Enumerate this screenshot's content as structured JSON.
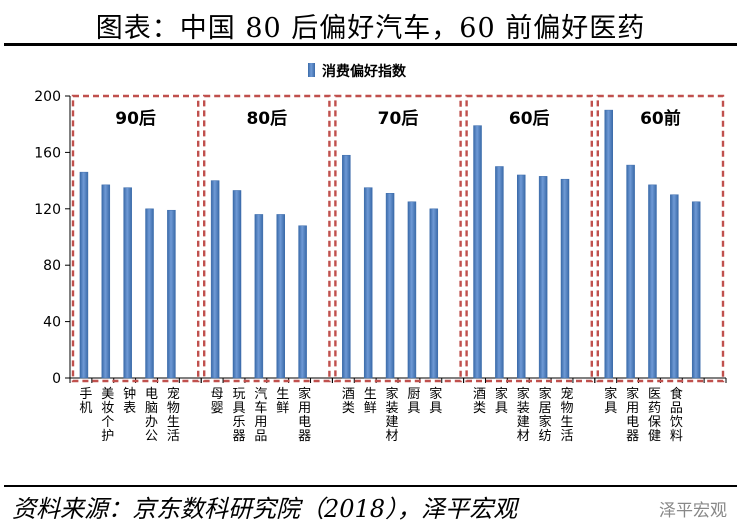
{
  "title": "图表：中国 80 后偏好汽车，60 前偏好医药",
  "source": "资料来源：京东数科研究院（2018），泽平宏观",
  "watermark": "泽平宏观",
  "colors": {
    "bar": "#4f81bd",
    "box": "#c0504d"
  },
  "chart_data": {
    "type": "bar",
    "ylim": [
      0,
      200
    ],
    "yticks": [
      0,
      40,
      80,
      120,
      160,
      200
    ],
    "legend": "消费偏好指数",
    "legend_position": "top-center",
    "groups": [
      {
        "label": "90后",
        "categories": [
          "手机",
          "美妆个护",
          "钟表",
          "电脑办公",
          "宠物生活"
        ],
        "values": [
          146,
          137,
          135,
          120,
          119
        ]
      },
      {
        "label": "80后",
        "categories": [
          "母婴",
          "玩具乐器",
          "汽车用品",
          "生鲜",
          "家用电器"
        ],
        "values": [
          140,
          133,
          116,
          116,
          108
        ]
      },
      {
        "label": "70后",
        "categories": [
          "酒类",
          "生鲜",
          "家装建材",
          "厨具",
          "家具"
        ],
        "values": [
          158,
          135,
          131,
          125,
          120
        ]
      },
      {
        "label": "60后",
        "categories": [
          "酒类",
          "家具",
          "家装建材",
          "家居家纺",
          "宠物生活"
        ],
        "values": [
          179,
          150,
          144,
          143,
          141
        ]
      },
      {
        "label": "60前",
        "categories": [
          "家具",
          "家用电器",
          "医药保健",
          "食品饮料",
          ""
        ],
        "values": [
          190,
          151,
          137,
          130,
          125
        ]
      }
    ]
  }
}
